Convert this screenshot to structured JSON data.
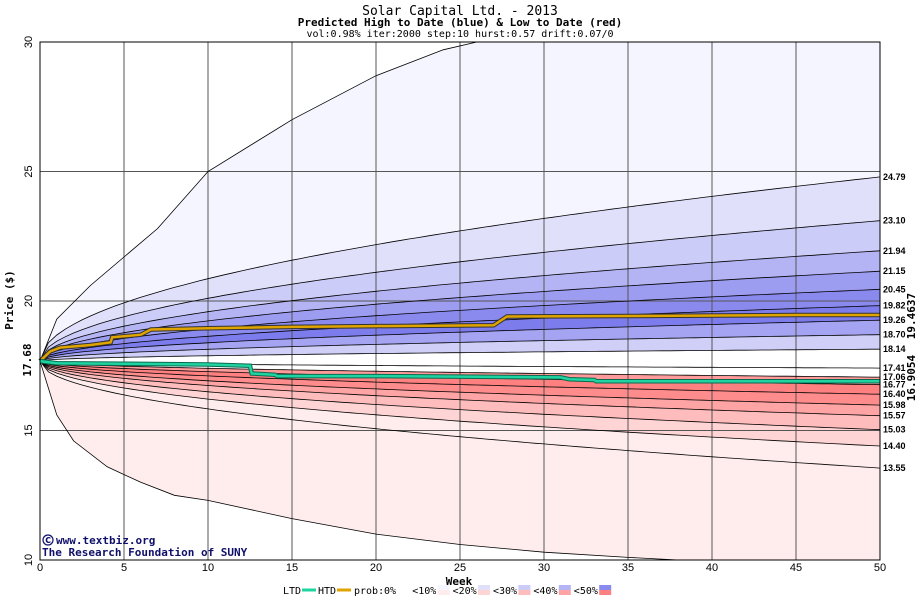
{
  "chart_data": {
    "type": "area",
    "title": "Solar Capital Ltd. - 2013",
    "subtitle": "Predicted High to Date (blue) &  Low to Date (red)",
    "params": "vol:0.98% iter:2000 step:10 hurst:0.57 drift:0.07/0",
    "xlabel": "Week",
    "ylabel": "Price ($)",
    "xlim": [
      0,
      50
    ],
    "ylim": [
      10,
      30
    ],
    "x_ticks": [
      0,
      5,
      10,
      15,
      20,
      25,
      30,
      35,
      40,
      45,
      50
    ],
    "y_ticks": [
      10,
      15,
      20,
      25,
      30
    ],
    "start_price": "17.68",
    "htd_label": "19.4637",
    "ltd_label": "16.9054",
    "right_labels": [
      "24.79",
      "23.10",
      "21.94",
      "21.15",
      "20.45",
      "19.82",
      "19.26",
      "18.70",
      "18.14",
      "17.41",
      "17.06",
      "16.77",
      "16.40",
      "15.98",
      "15.57",
      "15.03",
      "14.40",
      "13.55"
    ],
    "bands": [
      {
        "end": 24.79,
        "color": "#f5f5ff"
      },
      {
        "end": 23.1,
        "color": "#e0e0fb"
      },
      {
        "end": 21.94,
        "color": "#ccccf8"
      },
      {
        "end": 21.15,
        "color": "#b4b4f4"
      },
      {
        "end": 20.45,
        "color": "#9c9cf0"
      },
      {
        "end": 19.82,
        "color": "#8a8aee"
      },
      {
        "end": 19.26,
        "color": "#7c7cec"
      },
      {
        "end": 18.7,
        "color": "#a4a4f2"
      },
      {
        "end": 18.14,
        "color": "#cfcff8"
      },
      {
        "end": 17.41,
        "color": "#ffffff"
      },
      {
        "end": 17.06,
        "color": "#ffffff"
      },
      {
        "end": 16.77,
        "color": "#ff9a9a"
      },
      {
        "end": 16.4,
        "color": "#ff8080"
      },
      {
        "end": 15.98,
        "color": "#ff8c8c"
      },
      {
        "end": 15.57,
        "color": "#ffa4a4"
      },
      {
        "end": 15.03,
        "color": "#ffbcbc"
      },
      {
        "end": 14.4,
        "color": "#ffd4d4"
      },
      {
        "end": 13.55,
        "color": "#ffeded"
      }
    ],
    "outer_upper": [
      [
        0,
        17.68
      ],
      [
        1,
        19.3
      ],
      [
        3,
        20.6
      ],
      [
        5,
        21.7
      ],
      [
        7,
        22.8
      ],
      [
        10,
        25
      ],
      [
        15,
        27
      ],
      [
        20,
        28.7
      ],
      [
        24,
        29.7
      ],
      [
        26,
        30
      ]
    ],
    "outer_lower": [
      [
        0,
        17.68
      ],
      [
        1,
        15.6
      ],
      [
        2,
        14.6
      ],
      [
        4,
        13.6
      ],
      [
        6,
        13.0
      ],
      [
        8,
        12.5
      ],
      [
        10,
        12.3
      ],
      [
        15,
        11.6
      ],
      [
        20,
        11.0
      ],
      [
        25,
        10.6
      ],
      [
        30,
        10.3
      ],
      [
        35,
        10.1
      ],
      [
        38,
        10.0
      ]
    ],
    "htd_series": [
      [
        0,
        17.68
      ],
      [
        0.6,
        18.05
      ],
      [
        1.2,
        18.2
      ],
      [
        3,
        18.3
      ],
      [
        4.2,
        18.4
      ],
      [
        4.3,
        18.6
      ],
      [
        6,
        18.7
      ],
      [
        6.6,
        18.9
      ],
      [
        10,
        18.95
      ],
      [
        15,
        19.0
      ],
      [
        20,
        19.03
      ],
      [
        27,
        19.06
      ],
      [
        27.8,
        19.4
      ],
      [
        35,
        19.42
      ],
      [
        45,
        19.46
      ],
      [
        50,
        19.46
      ]
    ],
    "ltd_series": [
      [
        0,
        17.68
      ],
      [
        1,
        17.6
      ],
      [
        5,
        17.58
      ],
      [
        10,
        17.55
      ],
      [
        12.5,
        17.5
      ],
      [
        12.6,
        17.2
      ],
      [
        14,
        17.15
      ],
      [
        14.1,
        17.1
      ],
      [
        20,
        17.1
      ],
      [
        25,
        17.08
      ],
      [
        31,
        17.05
      ],
      [
        31.5,
        16.98
      ],
      [
        33,
        16.95
      ],
      [
        33.1,
        16.9
      ],
      [
        40,
        16.9
      ],
      [
        50,
        16.9
      ]
    ],
    "credit_site": "www.textbiz.org",
    "credit_org": "The Research Foundation of SUNY",
    "legend": {
      "ltd": "LTD",
      "htd": "HTD",
      "prob_prefix": "prob:",
      "items": [
        "0%",
        "<10%",
        "<20%",
        "<30%",
        "<40%",
        "<50%"
      ]
    },
    "colors": {
      "htd_line": "#e0a400",
      "htd_dark": "#333333",
      "ltd_line": "#1fd4a0",
      "htd_label": "#a07000",
      "ltd_label": "#10906c",
      "start_label": "#109060"
    }
  }
}
